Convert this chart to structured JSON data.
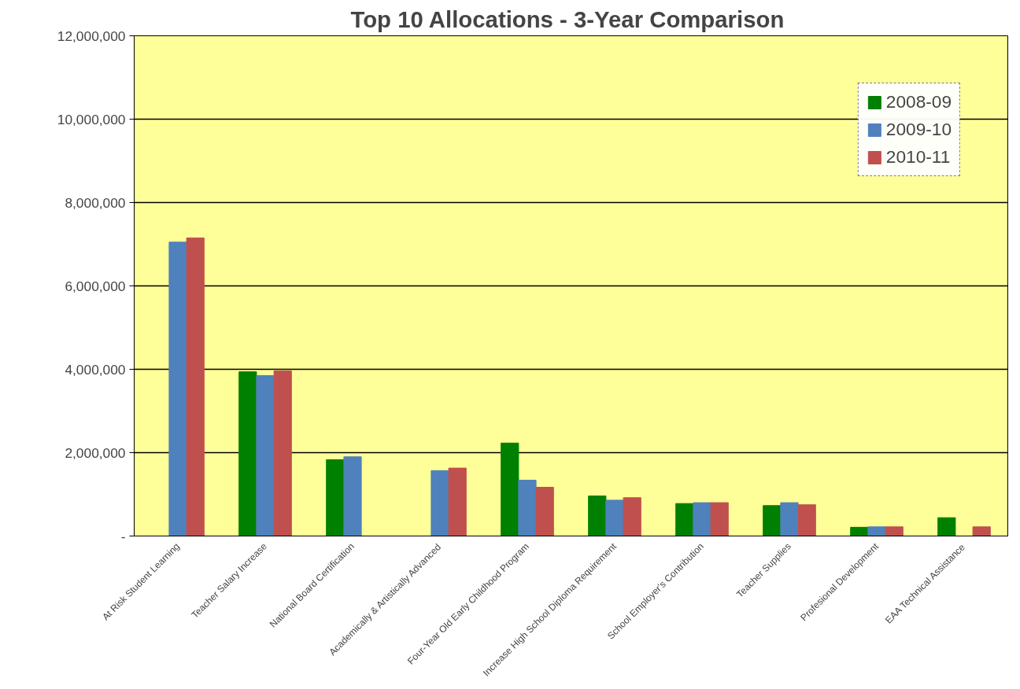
{
  "chart_data": {
    "type": "bar",
    "title": "Top 10 Allocations  - 3-Year Comparison",
    "categories": [
      "At Risk Student Learning",
      "Teacher Salary Increase",
      "National Board Certification",
      "Academically & Artistically Advanced",
      "Four-Year Old Early Childhood Program",
      "Increase High School Diploma Requirement",
      "School Employer's Contribution",
      "Teacher Supplies",
      "Profesional Development",
      "EAA Technical Assistance"
    ],
    "series": [
      {
        "name": "2008-09",
        "color": "#008000",
        "values": [
          null,
          3940000,
          1830000,
          null,
          2230000,
          960000,
          780000,
          730000,
          210000,
          440000
        ]
      },
      {
        "name": "2009-10",
        "color": "#4f81bd",
        "values": [
          7050000,
          3850000,
          1900000,
          1570000,
          1340000,
          860000,
          800000,
          800000,
          220000,
          null
        ]
      },
      {
        "name": "2010-11",
        "color": "#c0504d",
        "values": [
          7150000,
          3960000,
          null,
          1630000,
          1170000,
          920000,
          800000,
          750000,
          220000,
          220000
        ]
      }
    ],
    "ylim": [
      0,
      12000000
    ],
    "yticks": [
      {
        "value": 0,
        "label": "-"
      },
      {
        "value": 2000000,
        "label": "2,000,000"
      },
      {
        "value": 4000000,
        "label": "4,000,000"
      },
      {
        "value": 6000000,
        "label": "6,000,000"
      },
      {
        "value": 8000000,
        "label": "8,000,000"
      },
      {
        "value": 10000000,
        "label": "10,000,000"
      },
      {
        "value": 12000000,
        "label": "12,000,000"
      }
    ],
    "grid": "y",
    "legend": "top right"
  }
}
